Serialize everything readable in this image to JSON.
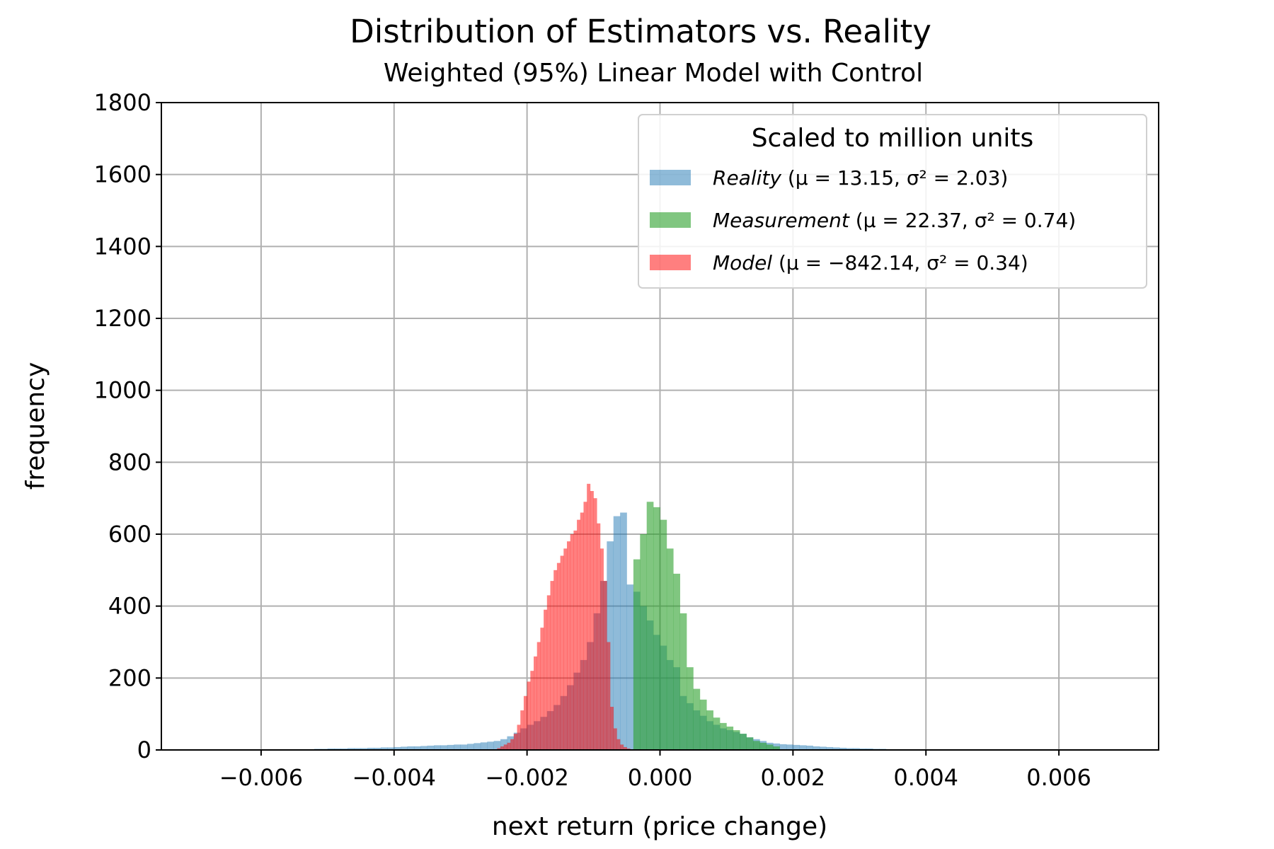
{
  "chart_data": {
    "type": "bar",
    "title": "Distribution of Estimators vs. Reality",
    "subtitle": "Weighted (95%) Linear Model with Control",
    "xlabel": "next return (price change)",
    "ylabel": "frequency",
    "xlim": [
      -0.0075,
      0.0075
    ],
    "ylim": [
      0,
      1800
    ],
    "xticks": [
      -0.006,
      -0.004,
      -0.002,
      0.0,
      0.002,
      0.004,
      0.006
    ],
    "xtick_labels": [
      "−0.006",
      "−0.004",
      "−0.002",
      "0.000",
      "0.002",
      "0.004",
      "0.006"
    ],
    "yticks": [
      0,
      200,
      400,
      600,
      800,
      1000,
      1200,
      1400,
      1600,
      1800
    ],
    "ytick_labels": [
      "0",
      "200",
      "400",
      "600",
      "800",
      "1000",
      "1200",
      "1400",
      "1600",
      "1800"
    ],
    "grid": true,
    "legend": {
      "title": "Scaled to million units",
      "placement": "top-right",
      "entries": [
        {
          "series": "Reality",
          "label_italic": "Reality",
          "label_rest": " (μ = 13.15, σ² = 2.03)"
        },
        {
          "series": "Measurement",
          "label_italic": "Measurement",
          "label_rest": " (μ = 22.37, σ² = 0.74)"
        },
        {
          "series": "Model",
          "label_italic": "Model",
          "label_rest": " (μ = −842.14, σ² = 0.34)"
        }
      ]
    },
    "series": [
      {
        "name": "Reality",
        "color": "#1f77b4",
        "opacity": 0.5,
        "bins_start": -0.0055,
        "bin_width": 0.0001,
        "values": [
          2,
          2,
          2,
          3,
          3,
          4,
          4,
          4,
          5,
          5,
          5,
          6,
          6,
          7,
          7,
          8,
          9,
          10,
          10,
          11,
          12,
          13,
          13,
          14,
          15,
          15,
          17,
          19,
          21,
          23,
          25,
          30,
          38,
          48,
          60,
          70,
          80,
          92,
          108,
          125,
          150,
          180,
          215,
          250,
          300,
          380,
          470,
          580,
          650,
          660,
          460,
          440,
          400,
          360,
          320,
          290,
          250,
          230,
          150,
          130,
          110,
          95,
          80,
          70,
          60,
          55,
          50,
          45,
          35,
          30,
          25,
          20,
          18,
          16,
          15,
          14,
          13,
          12,
          10,
          9,
          8,
          7,
          6,
          5,
          5,
          4,
          4,
          3,
          3,
          2,
          2,
          2,
          1
        ]
      },
      {
        "name": "Measurement",
        "color": "#2ca02c",
        "opacity": 0.6,
        "bins_start": -0.0004,
        "bin_width": 0.0001,
        "values": [
          530,
          600,
          690,
          675,
          640,
          560,
          490,
          380,
          230,
          170,
          140,
          110,
          90,
          75,
          65,
          55,
          45,
          35,
          25,
          20,
          15,
          10
        ]
      },
      {
        "name": "Model",
        "color": "#ff0000",
        "opacity": 0.5,
        "bins_start": -0.00245,
        "bin_width": 5e-05,
        "values": [
          5,
          10,
          15,
          20,
          30,
          45,
          70,
          110,
          150,
          190,
          220,
          260,
          300,
          340,
          390,
          430,
          470,
          500,
          520,
          540,
          560,
          580,
          600,
          610,
          640,
          660,
          690,
          740,
          720,
          700,
          630,
          560,
          470,
          300,
          120,
          60,
          30,
          15,
          8,
          4,
          2,
          1
        ]
      }
    ]
  }
}
